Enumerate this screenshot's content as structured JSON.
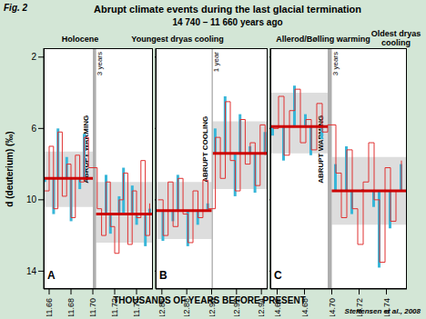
{
  "figure_label": "Fig. 2",
  "title": "Abrupt climate events during the last glacial termination",
  "subtitle": "14 740 – 11 660 years ago",
  "headers": [
    "Holocene",
    "Youngest dryas cooling",
    "Allerod/Bølling warming",
    "Oldest dryas cooling"
  ],
  "ylabel": "d (deuterium) (‰)",
  "xlabel": "THOUSANDS OF YEARS BEFORE PRESENT",
  "source": "Steffensen et al., 2008",
  "chart_data": [
    {
      "type": "line",
      "title": "A",
      "xlim": [
        11.655,
        11.755
      ],
      "xticks": [
        11.66,
        11.68,
        {
          "value": 11.7,
          "label": "11.70"
        },
        11.72,
        11.74
      ],
      "ylim": [
        15,
        1.5
      ],
      "yticks": [
        2,
        6,
        10,
        14
      ],
      "x": [
        11.656,
        11.66,
        11.664,
        11.668,
        11.672,
        11.676,
        11.68,
        11.684,
        11.688,
        11.692,
        11.696,
        11.704,
        11.708,
        11.712,
        11.716,
        11.72,
        11.724,
        11.728,
        11.732,
        11.736,
        11.74,
        11.744,
        11.748,
        11.752
      ],
      "series": [
        {
          "type": "line",
          "line_style": "step",
          "color": "#e03030",
          "values": [
            9.5,
            7.0,
            10.5,
            6.2,
            9.8,
            8.0,
            11.0,
            7.5,
            9.0,
            6.5,
            8.2,
            10.5,
            12.0,
            9.0,
            11.5,
            13.0,
            10.0,
            8.5,
            12.5,
            9.5,
            11.0,
            7.8,
            12.0,
            10.2
          ]
        },
        {
          "type": "bar",
          "color": "#38b6d8",
          "values": [
            9.0,
            null,
            10.8,
            6.0,
            null,
            7.6,
            11.2,
            null,
            9.4,
            6.3,
            null,
            10.8,
            null,
            8.6,
            11.9,
            null,
            9.8,
            8.2,
            null,
            9.2,
            11.4,
            null,
            12.6,
            10.5
          ]
        }
      ],
      "means": {
        "color": "#cc0000",
        "segments": [
          {
            "x": [
              11.655,
              11.7
            ],
            "value": 8.8,
            "band": [
              7.3,
              10.4
            ]
          },
          {
            "x": [
              11.703,
              11.755
            ],
            "value": 10.8,
            "band": [
              9.0,
              12.4
            ]
          }
        ]
      },
      "transition": {
        "x": [
          11.7,
          11.703
        ],
        "label": "ABRUPT WARMING",
        "duration": "3 years"
      }
    },
    {
      "type": "line",
      "title": "B",
      "tick_labels": "x",
      "xlim": [
        12.855,
        12.945
      ],
      "xticks": [
        12.86,
        12.88,
        {
          "value": 12.9,
          "label": "12.90"
        },
        12.92,
        12.94
      ],
      "ylim": [
        15,
        1.5
      ],
      "yticks": [
        2,
        6,
        10,
        14
      ],
      "x": [
        12.857,
        12.861,
        12.865,
        12.869,
        12.873,
        12.877,
        12.881,
        12.885,
        12.889,
        12.893,
        12.897,
        12.903,
        12.907,
        12.911,
        12.915,
        12.919,
        12.923,
        12.927,
        12.931,
        12.935,
        12.939,
        12.943
      ],
      "series": [
        {
          "type": "line",
          "line_style": "step",
          "color": "#e03030",
          "values": [
            10.0,
            12.0,
            9.0,
            11.5,
            8.8,
            10.8,
            12.4,
            9.5,
            11.0,
            8.9,
            10.5,
            6.5,
            8.8,
            4.5,
            7.8,
            9.5,
            5.5,
            8.0,
            6.8,
            9.2,
            5.8,
            7.5
          ]
        },
        {
          "type": "bar",
          "color": "#38b6d8",
          "values": [
            null,
            12.3,
            null,
            11.2,
            8.6,
            null,
            12.6,
            null,
            11.4,
            null,
            10.2,
            6.0,
            null,
            4.2,
            null,
            9.8,
            5.2,
            null,
            7.0,
            9.6,
            null,
            6.2
          ]
        }
      ],
      "means": {
        "color": "#cc0000",
        "segments": [
          {
            "x": [
              12.855,
              12.9
            ],
            "value": 10.6,
            "band": [
              9.0,
              12.2
            ]
          },
          {
            "x": [
              12.901,
              12.945
            ],
            "value": 7.4,
            "band": [
              5.6,
              9.4
            ]
          }
        ]
      },
      "transition": {
        "x": [
          12.9,
          12.901
        ],
        "label": "ABRUPT COOLING",
        "duration": "1 year"
      }
    },
    {
      "type": "line",
      "title": "C",
      "tick_labels": "x",
      "xlim": [
        14.655,
        14.755
      ],
      "xticks": [
        14.66,
        14.68,
        {
          "value": 14.7,
          "label": "14.70"
        },
        14.72,
        14.74
      ],
      "ylim": [
        15,
        1.5
      ],
      "yticks": [
        2,
        6,
        10,
        14
      ],
      "x": [
        14.657,
        14.661,
        14.665,
        14.669,
        14.673,
        14.677,
        14.681,
        14.685,
        14.689,
        14.693,
        14.697,
        14.703,
        14.707,
        14.711,
        14.715,
        14.719,
        14.723,
        14.727,
        14.731,
        14.735,
        14.739,
        14.743,
        14.747,
        14.751
      ],
      "series": [
        {
          "type": "line",
          "line_style": "step",
          "color": "#e03030",
          "values": [
            6.0,
            4.2,
            7.5,
            5.0,
            3.8,
            6.8,
            5.5,
            7.2,
            4.6,
            6.2,
            5.8,
            8.5,
            11.0,
            7.2,
            10.5,
            12.5,
            9.0,
            6.8,
            10.0,
            13.5,
            8.2,
            11.2,
            9.5,
            7.8
          ]
        },
        {
          "type": "bar",
          "color": "#38b6d8",
          "values": [
            6.4,
            null,
            7.8,
            null,
            3.6,
            null,
            5.2,
            7.5,
            null,
            6.6,
            null,
            8.0,
            null,
            7.0,
            10.8,
            null,
            9.4,
            null,
            10.4,
            13.8,
            null,
            11.6,
            null,
            8.0
          ]
        }
      ],
      "means": {
        "color": "#cc0000",
        "segments": [
          {
            "x": [
              14.655,
              14.697
            ],
            "value": 5.9,
            "band": [
              4.0,
              7.4
            ]
          },
          {
            "x": [
              14.7,
              14.755
            ],
            "value": 9.5,
            "band": [
              7.6,
              11.4
            ]
          }
        ]
      },
      "transition": {
        "x": [
          14.697,
          14.7
        ],
        "label": "ABRUPT WARMING",
        "duration": "3 years"
      }
    }
  ]
}
